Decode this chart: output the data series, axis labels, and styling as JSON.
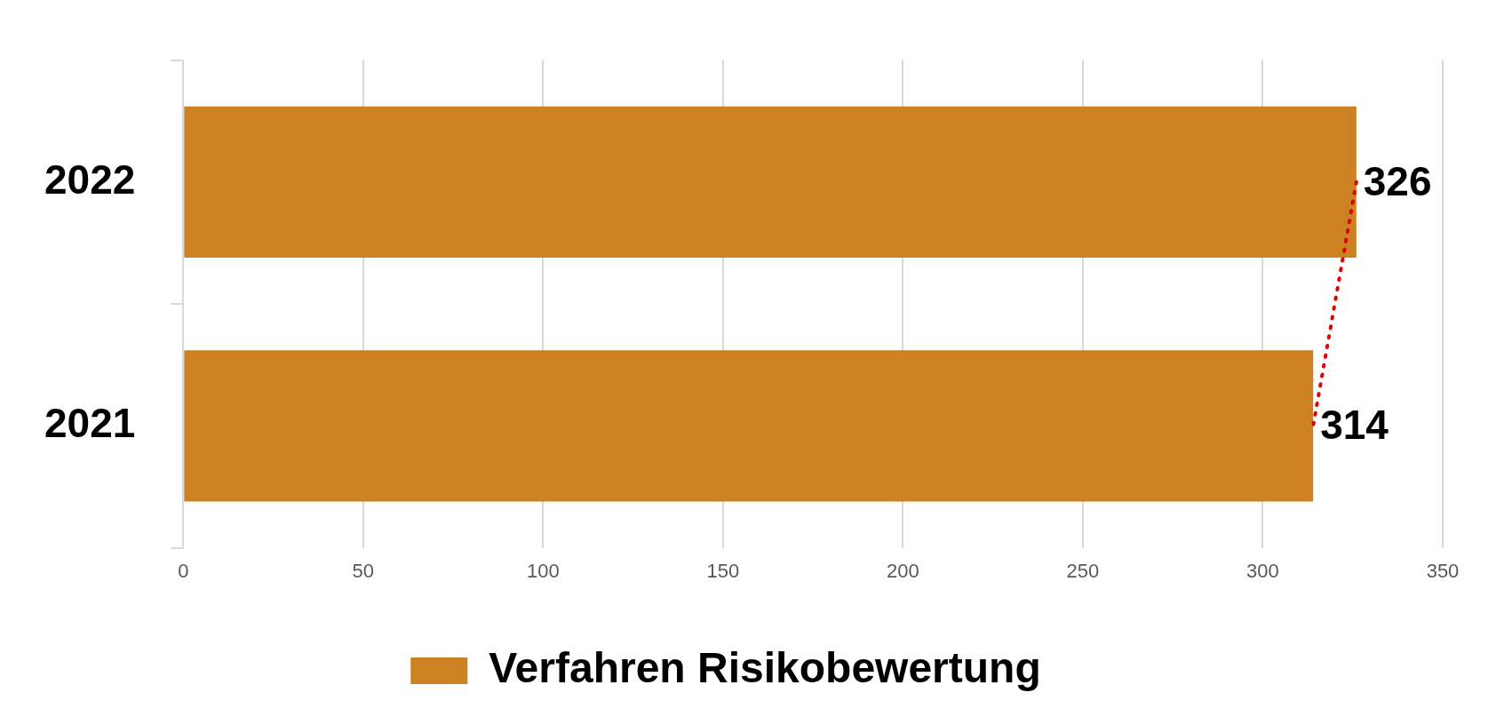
{
  "chart_data": {
    "type": "bar",
    "orientation": "horizontal",
    "categories": [
      "2022",
      "2021"
    ],
    "series": [
      {
        "name": "Verfahren Risikobewertung",
        "color": "#cc8122",
        "values": [
          326,
          314
        ],
        "value_labels": [
          "326",
          "314"
        ]
      },
      {
        "type": "line",
        "color": "#e00000",
        "line_style": "dotted",
        "marker": "none",
        "values": [
          326,
          314
        ]
      }
    ],
    "xlim": [
      0,
      350
    ],
    "xticks": [
      0,
      50,
      100,
      150,
      200,
      250,
      300,
      350
    ],
    "grid": "x",
    "legend": "bottom"
  }
}
